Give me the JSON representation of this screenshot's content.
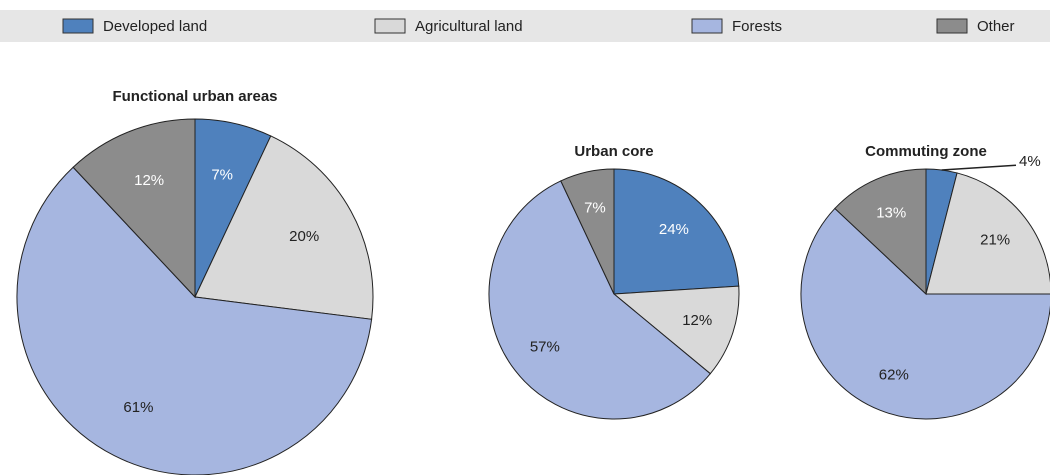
{
  "legend": [
    {
      "name": "Developed land",
      "color": "#4f81bd"
    },
    {
      "name": "Agricultural land",
      "color": "#d9d9d9"
    },
    {
      "name": "Forests",
      "color": "#a6b6e0"
    },
    {
      "name": "Other",
      "color": "#8c8c8c"
    }
  ],
  "chart_data": [
    {
      "type": "pie",
      "title": "Functional urban areas",
      "values": [
        7,
        20,
        61,
        12
      ],
      "value_labels": [
        "7%",
        "20%",
        "61%",
        "12%"
      ]
    },
    {
      "type": "pie",
      "title": "Urban core",
      "values": [
        24,
        12,
        57,
        7
      ],
      "value_labels": [
        "24%",
        "12%",
        "57%",
        "7%"
      ]
    },
    {
      "type": "pie",
      "title": "Commuting zone",
      "values": [
        4,
        21,
        62,
        13
      ],
      "value_labels": [
        "4%",
        "21%",
        "62%",
        "13%"
      ]
    }
  ]
}
